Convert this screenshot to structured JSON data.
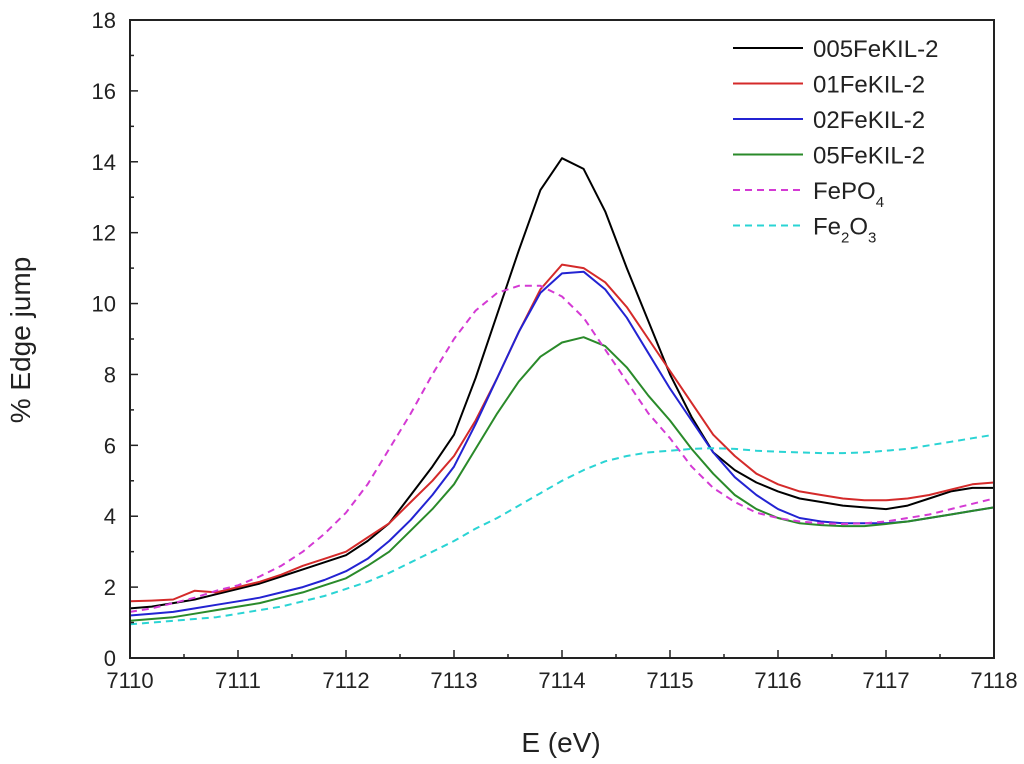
{
  "chart_data": {
    "type": "line",
    "title": "",
    "xlabel": "E (eV)",
    "ylabel": "% Edge jump",
    "xlim": [
      7110,
      7118
    ],
    "ylim": [
      0,
      18
    ],
    "xticks": [
      7110,
      7111,
      7112,
      7113,
      7114,
      7115,
      7116,
      7117,
      7118
    ],
    "yticks": [
      0,
      2,
      4,
      6,
      8,
      10,
      12,
      14,
      16,
      18
    ],
    "grid": false,
    "legend_position": "top-right",
    "series": [
      {
        "name": "005FeKIL-2",
        "label_main": "005FeKIL-2",
        "label_sub": "",
        "label_tail": "",
        "color": "#000000",
        "dash": "solid",
        "x": [
          7110.0,
          7110.2,
          7110.4,
          7110.6,
          7110.8,
          7111.0,
          7111.2,
          7111.4,
          7111.6,
          7111.8,
          7112.0,
          7112.2,
          7112.4,
          7112.6,
          7112.8,
          7113.0,
          7113.2,
          7113.4,
          7113.6,
          7113.8,
          7114.0,
          7114.2,
          7114.4,
          7114.6,
          7114.8,
          7115.0,
          7115.2,
          7115.4,
          7115.6,
          7115.8,
          7116.0,
          7116.2,
          7116.4,
          7116.6,
          7116.8,
          7117.0,
          7117.2,
          7117.4,
          7117.6,
          7117.8,
          7118.0
        ],
        "y": [
          1.4,
          1.45,
          1.55,
          1.65,
          1.8,
          1.95,
          2.1,
          2.3,
          2.5,
          2.7,
          2.9,
          3.3,
          3.8,
          4.6,
          5.4,
          6.3,
          7.9,
          9.7,
          11.5,
          13.2,
          14.1,
          13.8,
          12.6,
          11.0,
          9.5,
          8.0,
          6.8,
          5.8,
          5.3,
          4.95,
          4.7,
          4.5,
          4.4,
          4.3,
          4.25,
          4.2,
          4.3,
          4.5,
          4.7,
          4.8,
          4.8
        ]
      },
      {
        "name": "01FeKIL-2",
        "label_main": "01FeKIL-2",
        "label_sub": "",
        "label_tail": "",
        "color": "#d42a2a",
        "dash": "solid",
        "x": [
          7110.0,
          7110.2,
          7110.4,
          7110.6,
          7110.8,
          7111.0,
          7111.2,
          7111.4,
          7111.6,
          7111.8,
          7112.0,
          7112.2,
          7112.4,
          7112.6,
          7112.8,
          7113.0,
          7113.2,
          7113.4,
          7113.6,
          7113.8,
          7114.0,
          7114.2,
          7114.4,
          7114.6,
          7114.8,
          7115.0,
          7115.2,
          7115.4,
          7115.6,
          7115.8,
          7116.0,
          7116.2,
          7116.4,
          7116.6,
          7116.8,
          7117.0,
          7117.2,
          7117.4,
          7117.6,
          7117.8,
          7118.0
        ],
        "y": [
          1.6,
          1.62,
          1.65,
          1.9,
          1.85,
          2.0,
          2.15,
          2.35,
          2.6,
          2.8,
          3.0,
          3.4,
          3.8,
          4.4,
          5.0,
          5.7,
          6.7,
          7.9,
          9.2,
          10.4,
          11.1,
          11.0,
          10.6,
          9.9,
          9.0,
          8.1,
          7.2,
          6.3,
          5.7,
          5.2,
          4.9,
          4.7,
          4.6,
          4.5,
          4.45,
          4.45,
          4.5,
          4.6,
          4.75,
          4.9,
          4.95
        ]
      },
      {
        "name": "02FeKIL-2",
        "label_main": "02FeKIL-2",
        "label_sub": "",
        "label_tail": "",
        "color": "#2323d2",
        "dash": "solid",
        "x": [
          7110.0,
          7110.2,
          7110.4,
          7110.6,
          7110.8,
          7111.0,
          7111.2,
          7111.4,
          7111.6,
          7111.8,
          7112.0,
          7112.2,
          7112.4,
          7112.6,
          7112.8,
          7113.0,
          7113.2,
          7113.4,
          7113.6,
          7113.8,
          7114.0,
          7114.2,
          7114.4,
          7114.6,
          7114.8,
          7115.0,
          7115.2,
          7115.4,
          7115.6,
          7115.8,
          7116.0,
          7116.2,
          7116.4,
          7116.6,
          7116.8,
          7117.0,
          7117.2,
          7117.4,
          7117.6,
          7117.8,
          7118.0
        ],
        "y": [
          1.2,
          1.25,
          1.3,
          1.4,
          1.5,
          1.6,
          1.7,
          1.85,
          2.0,
          2.2,
          2.45,
          2.8,
          3.3,
          3.9,
          4.6,
          5.4,
          6.6,
          7.9,
          9.2,
          10.3,
          10.85,
          10.9,
          10.4,
          9.6,
          8.6,
          7.6,
          6.7,
          5.8,
          5.1,
          4.6,
          4.2,
          3.95,
          3.85,
          3.8,
          3.8,
          3.8,
          3.85,
          3.95,
          4.05,
          4.15,
          4.25
        ]
      },
      {
        "name": "05FeKIL-2",
        "label_main": "05FeKIL-2",
        "label_sub": "",
        "label_tail": "",
        "color": "#2a8a2a",
        "dash": "solid",
        "x": [
          7110.0,
          7110.2,
          7110.4,
          7110.6,
          7110.8,
          7111.0,
          7111.2,
          7111.4,
          7111.6,
          7111.8,
          7112.0,
          7112.2,
          7112.4,
          7112.6,
          7112.8,
          7113.0,
          7113.2,
          7113.4,
          7113.6,
          7113.8,
          7114.0,
          7114.2,
          7114.4,
          7114.6,
          7114.8,
          7115.0,
          7115.2,
          7115.4,
          7115.6,
          7115.8,
          7116.0,
          7116.2,
          7116.4,
          7116.6,
          7116.8,
          7117.0,
          7117.2,
          7117.4,
          7117.6,
          7117.8,
          7118.0
        ],
        "y": [
          1.05,
          1.1,
          1.15,
          1.25,
          1.35,
          1.45,
          1.55,
          1.7,
          1.85,
          2.05,
          2.25,
          2.6,
          3.0,
          3.6,
          4.2,
          4.9,
          5.9,
          6.9,
          7.8,
          8.5,
          8.9,
          9.05,
          8.8,
          8.2,
          7.4,
          6.7,
          5.9,
          5.2,
          4.6,
          4.2,
          3.95,
          3.8,
          3.75,
          3.72,
          3.72,
          3.78,
          3.85,
          3.95,
          4.05,
          4.15,
          4.25
        ]
      },
      {
        "name": "FePO4",
        "label_main": "FePO",
        "label_sub": "4",
        "label_tail": "",
        "color": "#d43ad4",
        "dash": "dashed",
        "x": [
          7110.0,
          7110.2,
          7110.4,
          7110.6,
          7110.8,
          7111.0,
          7111.2,
          7111.4,
          7111.6,
          7111.8,
          7112.0,
          7112.2,
          7112.4,
          7112.6,
          7112.8,
          7113.0,
          7113.2,
          7113.4,
          7113.6,
          7113.8,
          7114.0,
          7114.2,
          7114.4,
          7114.6,
          7114.8,
          7115.0,
          7115.2,
          7115.4,
          7115.6,
          7115.8,
          7116.0,
          7116.2,
          7116.4,
          7116.6,
          7116.8,
          7117.0,
          7117.2,
          7117.4,
          7117.6,
          7117.8,
          7118.0
        ],
        "y": [
          1.3,
          1.4,
          1.55,
          1.7,
          1.9,
          2.05,
          2.3,
          2.6,
          3.0,
          3.5,
          4.1,
          4.9,
          5.9,
          6.9,
          8.0,
          9.0,
          9.8,
          10.3,
          10.5,
          10.5,
          10.2,
          9.6,
          8.7,
          7.8,
          6.9,
          6.2,
          5.4,
          4.8,
          4.4,
          4.1,
          3.95,
          3.85,
          3.8,
          3.78,
          3.8,
          3.85,
          3.95,
          4.05,
          4.2,
          4.35,
          4.5
        ]
      },
      {
        "name": "Fe2O3",
        "label_main": "Fe",
        "label_sub": "2",
        "label_tail": "O",
        "label_sub2": "3",
        "color": "#2ad4d4",
        "dash": "dashed",
        "x": [
          7110.0,
          7110.2,
          7110.4,
          7110.6,
          7110.8,
          7111.0,
          7111.2,
          7111.4,
          7111.6,
          7111.8,
          7112.0,
          7112.2,
          7112.4,
          7112.6,
          7112.8,
          7113.0,
          7113.2,
          7113.4,
          7113.6,
          7113.8,
          7114.0,
          7114.2,
          7114.4,
          7114.6,
          7114.8,
          7115.0,
          7115.2,
          7115.4,
          7115.6,
          7115.8,
          7116.0,
          7116.2,
          7116.4,
          7116.6,
          7116.8,
          7117.0,
          7117.2,
          7117.4,
          7117.6,
          7117.8,
          7118.0
        ],
        "y": [
          0.95,
          1.0,
          1.05,
          1.1,
          1.15,
          1.25,
          1.35,
          1.45,
          1.6,
          1.75,
          1.95,
          2.15,
          2.4,
          2.7,
          3.0,
          3.3,
          3.65,
          3.95,
          4.3,
          4.65,
          5.0,
          5.3,
          5.55,
          5.7,
          5.8,
          5.85,
          5.9,
          5.92,
          5.9,
          5.85,
          5.82,
          5.8,
          5.78,
          5.78,
          5.8,
          5.85,
          5.9,
          6.0,
          6.1,
          6.2,
          6.3
        ]
      }
    ]
  }
}
